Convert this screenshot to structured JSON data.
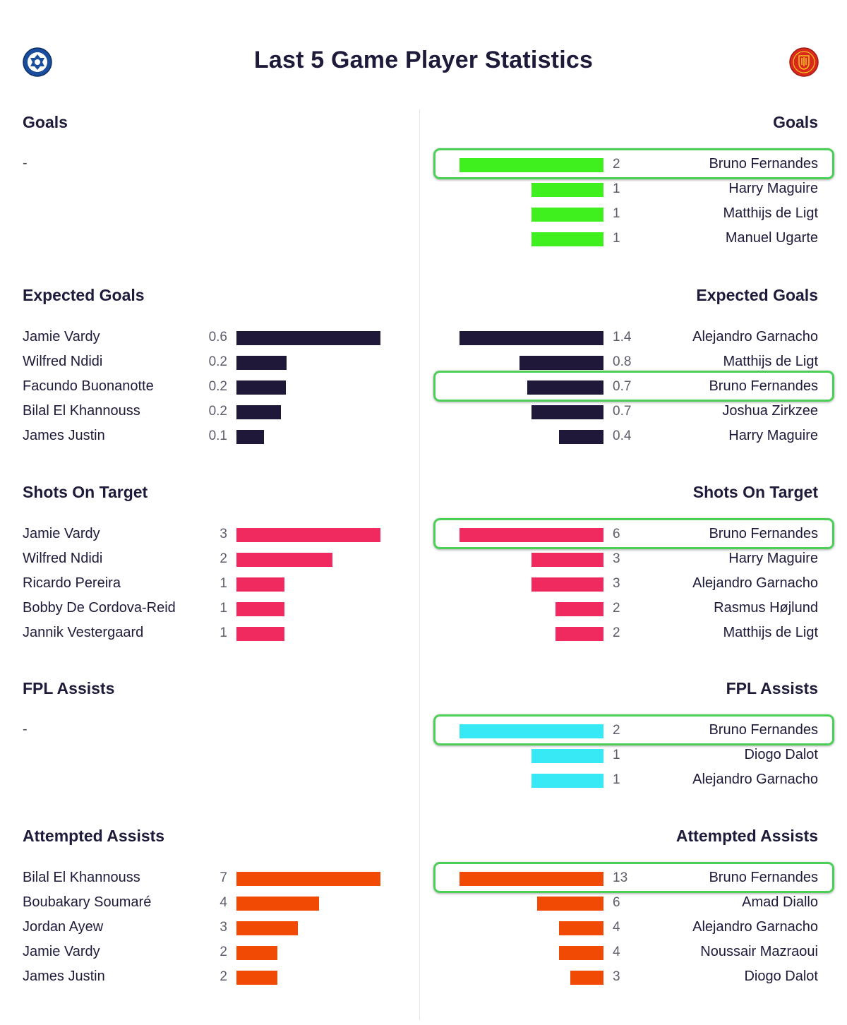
{
  "title": "Last 5 Game Player Statistics",
  "crests": {
    "home": "leicester-crest-icon",
    "away": "man-utd-crest-icon"
  },
  "colors": {
    "goals": "#40f01e",
    "expected_goals": "#201838",
    "shots_on_target": "#f0295f",
    "fpl_assists": "#36e9f4",
    "attempted_assists": "#f04a05",
    "highlight": "#4ccf56"
  },
  "chart_data": [
    {
      "type": "bar",
      "team": "left",
      "metric": "goals",
      "title": "Goals",
      "empty_text": "-",
      "players": [],
      "values": [],
      "max": 1
    },
    {
      "type": "bar",
      "team": "left",
      "metric": "expected_goals",
      "title": "Expected Goals",
      "players": [
        "Jamie Vardy",
        "Wilfred Ndidi",
        "Facundo Buonanotte",
        "Bilal El Khannouss",
        "James Justin"
      ],
      "values": [
        0.6,
        0.2,
        0.2,
        0.2,
        0.1
      ],
      "bar_values": [
        0.6,
        0.21,
        0.205,
        0.185,
        0.115
      ],
      "labels": [
        "0.6",
        "0.2",
        "0.2",
        "0.2",
        "0.1"
      ],
      "max": 0.6
    },
    {
      "type": "bar",
      "team": "left",
      "metric": "shots_on_target",
      "title": "Shots On Target",
      "players": [
        "Jamie Vardy",
        "Wilfred Ndidi",
        "Ricardo Pereira",
        "Bobby De Cordova-Reid",
        "Jannik Vestergaard"
      ],
      "values": [
        3,
        2,
        1,
        1,
        1
      ],
      "labels": [
        "3",
        "2",
        "1",
        "1",
        "1"
      ],
      "max": 3
    },
    {
      "type": "bar",
      "team": "left",
      "metric": "fpl_assists",
      "title": "FPL Assists",
      "empty_text": "-",
      "players": [],
      "values": [],
      "max": 1
    },
    {
      "type": "bar",
      "team": "left",
      "metric": "attempted_assists",
      "title": "Attempted Assists",
      "players": [
        "Bilal El Khannouss",
        "Boubakary Soumaré",
        "Jordan Ayew",
        "Jamie Vardy",
        "James Justin"
      ],
      "values": [
        7,
        4,
        3,
        2,
        2
      ],
      "labels": [
        "7",
        "4",
        "3",
        "2",
        "2"
      ],
      "max": 7
    },
    {
      "type": "bar",
      "team": "right",
      "metric": "goals",
      "title": "Goals",
      "players": [
        "Bruno Fernandes",
        "Harry Maguire",
        "Matthijs de Ligt",
        "Manuel Ugarte"
      ],
      "values": [
        2,
        1,
        1,
        1
      ],
      "labels": [
        "2",
        "1",
        "1",
        "1"
      ],
      "max": 2,
      "highlight": 0
    },
    {
      "type": "bar",
      "team": "right",
      "metric": "expected_goals",
      "title": "Expected Goals",
      "players": [
        "Alejandro Garnacho",
        "Matthijs de Ligt",
        "Bruno Fernandes",
        "Joshua Zirkzee",
        "Harry Maguire"
      ],
      "values": [
        1.4,
        0.8,
        0.7,
        0.7,
        0.4
      ],
      "bar_values": [
        1.4,
        0.82,
        0.74,
        0.7,
        0.43
      ],
      "labels": [
        "1.4",
        "0.8",
        "0.7",
        "0.7",
        "0.4"
      ],
      "max": 1.4,
      "highlight": 2
    },
    {
      "type": "bar",
      "team": "right",
      "metric": "shots_on_target",
      "title": "Shots On Target",
      "players": [
        "Bruno Fernandes",
        "Harry Maguire",
        "Alejandro Garnacho",
        "Rasmus Højlund",
        "Matthijs de Ligt"
      ],
      "values": [
        6,
        3,
        3,
        2,
        2
      ],
      "labels": [
        "6",
        "3",
        "3",
        "2",
        "2"
      ],
      "max": 6,
      "highlight": 0
    },
    {
      "type": "bar",
      "team": "right",
      "metric": "fpl_assists",
      "title": "FPL Assists",
      "players": [
        "Bruno Fernandes",
        "Diogo Dalot",
        "Alejandro Garnacho"
      ],
      "values": [
        2,
        1,
        1
      ],
      "labels": [
        "2",
        "1",
        "1"
      ],
      "max": 2,
      "highlight": 0
    },
    {
      "type": "bar",
      "team": "right",
      "metric": "attempted_assists",
      "title": "Attempted Assists",
      "players": [
        "Bruno Fernandes",
        "Amad Diallo",
        "Alejandro Garnacho",
        "Noussair Mazraoui",
        "Diogo Dalot"
      ],
      "values": [
        13,
        6,
        4,
        4,
        3
      ],
      "labels": [
        "13",
        "6",
        "4",
        "4",
        "3"
      ],
      "max": 13,
      "highlight": 0
    }
  ]
}
